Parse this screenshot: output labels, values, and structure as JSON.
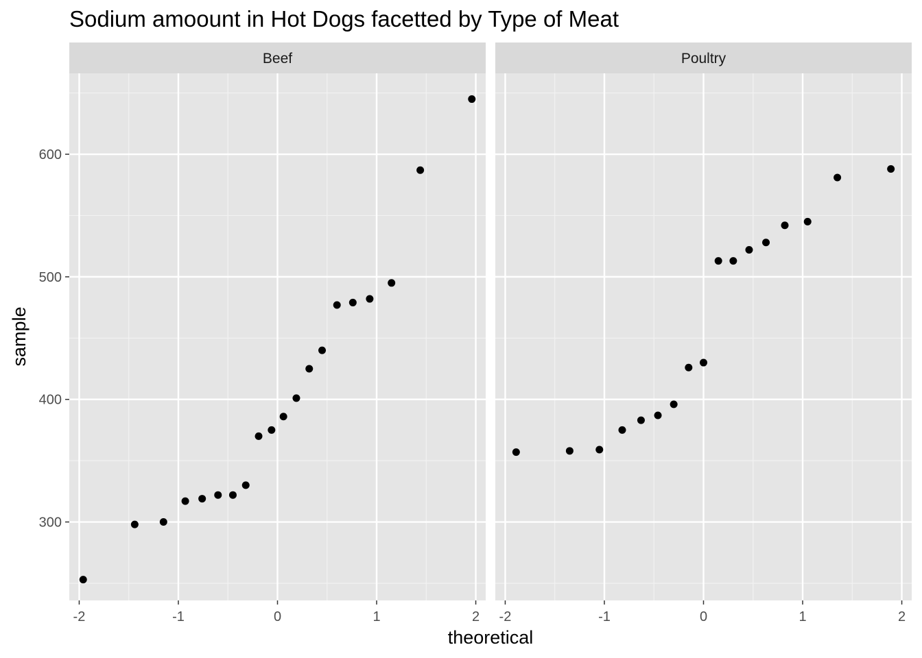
{
  "chart_data": {
    "type": "scatter",
    "title": "Sodium amoount in Hot Dogs facetted by Type of Meat",
    "xlabel": "theoretical",
    "ylabel": "sample",
    "xlim": [
      -2.1,
      2.1
    ],
    "ylim": [
      236,
      666
    ],
    "x_ticks": [
      -2,
      -1,
      0,
      1,
      2
    ],
    "x_tick_labels": [
      "-2",
      "-1",
      "0",
      "1",
      "2"
    ],
    "y_ticks": [
      300,
      400,
      500,
      600
    ],
    "y_tick_labels": [
      "300",
      "400",
      "500",
      "600"
    ],
    "grid": true,
    "panels": [
      {
        "name": "Beef",
        "x": [
          -1.96,
          -1.44,
          -1.15,
          -0.93,
          -0.76,
          -0.6,
          -0.45,
          -0.32,
          -0.19,
          -0.06,
          0.06,
          0.19,
          0.32,
          0.45,
          0.6,
          0.76,
          0.93,
          1.15,
          1.44,
          1.96
        ],
        "y": [
          253,
          298,
          300,
          317,
          319,
          322,
          322,
          330,
          370,
          375,
          386,
          401,
          425,
          440,
          477,
          479,
          482,
          495,
          587,
          645
        ]
      },
      {
        "name": "Poultry",
        "x": [
          -1.89,
          -1.35,
          -1.05,
          -0.82,
          -0.63,
          -0.46,
          -0.3,
          -0.15,
          0.0,
          0.15,
          0.3,
          0.46,
          0.63,
          0.82,
          1.05,
          1.35,
          1.89
        ],
        "y": [
          357,
          358,
          359,
          375,
          383,
          387,
          396,
          426,
          430,
          513,
          513,
          522,
          528,
          542,
          545,
          581,
          588
        ]
      }
    ]
  }
}
